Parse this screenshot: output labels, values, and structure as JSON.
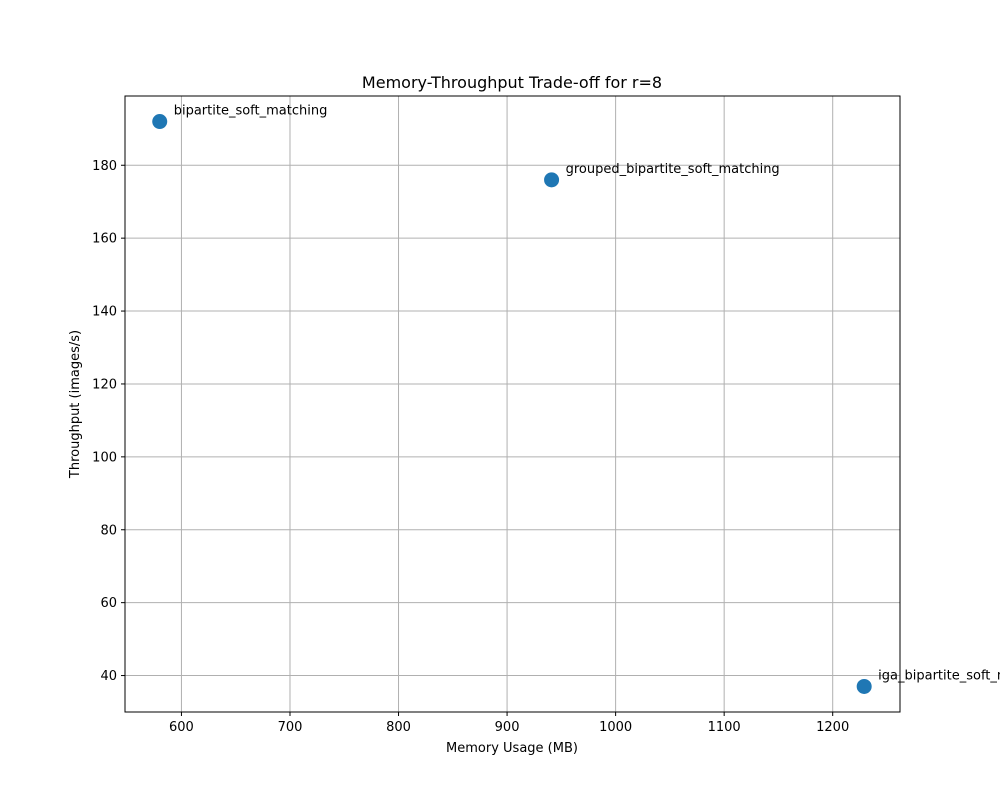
{
  "chart_data": {
    "type": "scatter",
    "title": "Memory-Throughput Trade-off for r=8",
    "xlabel": "Memory Usage (MB)",
    "ylabel": "Throughput (images/s)",
    "xlim": [
      548,
      1262
    ],
    "ylim": [
      30,
      199
    ],
    "xticks": [
      600,
      700,
      800,
      900,
      1000,
      1100,
      1200
    ],
    "yticks": [
      40,
      60,
      80,
      100,
      120,
      140,
      160,
      180
    ],
    "grid": true,
    "marker_color": "#1f77b4",
    "grid_color": "#b0b0b0",
    "points": [
      {
        "label": "bipartite_soft_matching",
        "x": 580,
        "y": 192
      },
      {
        "label": "grouped_bipartite_soft_matching",
        "x": 941,
        "y": 176
      },
      {
        "label": "iga_bipartite_soft_matching",
        "x": 1229,
        "y": 37
      }
    ]
  }
}
